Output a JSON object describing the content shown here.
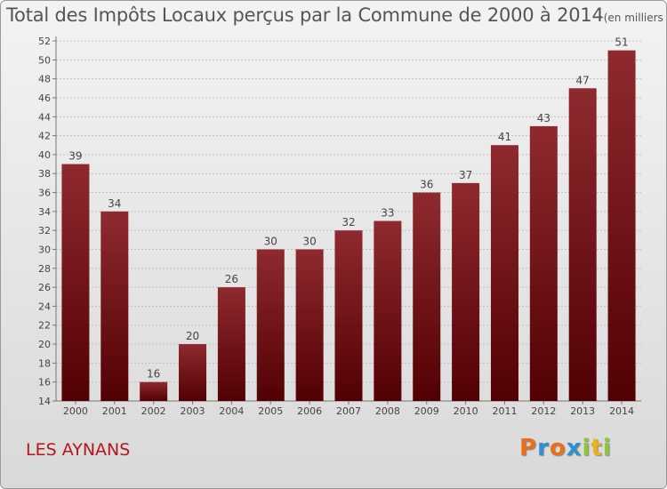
{
  "header": {
    "title": "Total des Impôts Locaux perçus par la Commune de 2000 à 2014",
    "unit": "(en milliers d'€)"
  },
  "footer": {
    "commune": "LES AYNANS",
    "logo": {
      "letters": [
        "P",
        "r",
        "o",
        "x",
        "i",
        "t",
        "i"
      ],
      "colors": [
        "#e8701a",
        "#2f8fd0",
        "#e8701a",
        "#2f8fd0",
        "#8cc63f",
        "#e8b21a",
        "#8cc63f"
      ]
    }
  },
  "chart_data": {
    "type": "bar",
    "title": "Total des Impôts Locaux perçus par la Commune de 2000 à 2014",
    "ylim": [
      14,
      52
    ],
    "y_ticks": [
      14,
      16,
      18,
      20,
      22,
      24,
      26,
      28,
      30,
      32,
      34,
      36,
      38,
      40,
      42,
      44,
      46,
      48,
      50,
      52
    ],
    "grid": "horizontal dashed",
    "bar_color": "#7a0f14",
    "categories": [
      "2000",
      "2001",
      "2002",
      "2003",
      "2004",
      "2005",
      "2006",
      "2007",
      "2008",
      "2009",
      "2010",
      "2011",
      "2012",
      "2013",
      "2014"
    ],
    "values": [
      39,
      34,
      16,
      20,
      26,
      30,
      30,
      32,
      33,
      36,
      37,
      41,
      43,
      47,
      51
    ]
  }
}
